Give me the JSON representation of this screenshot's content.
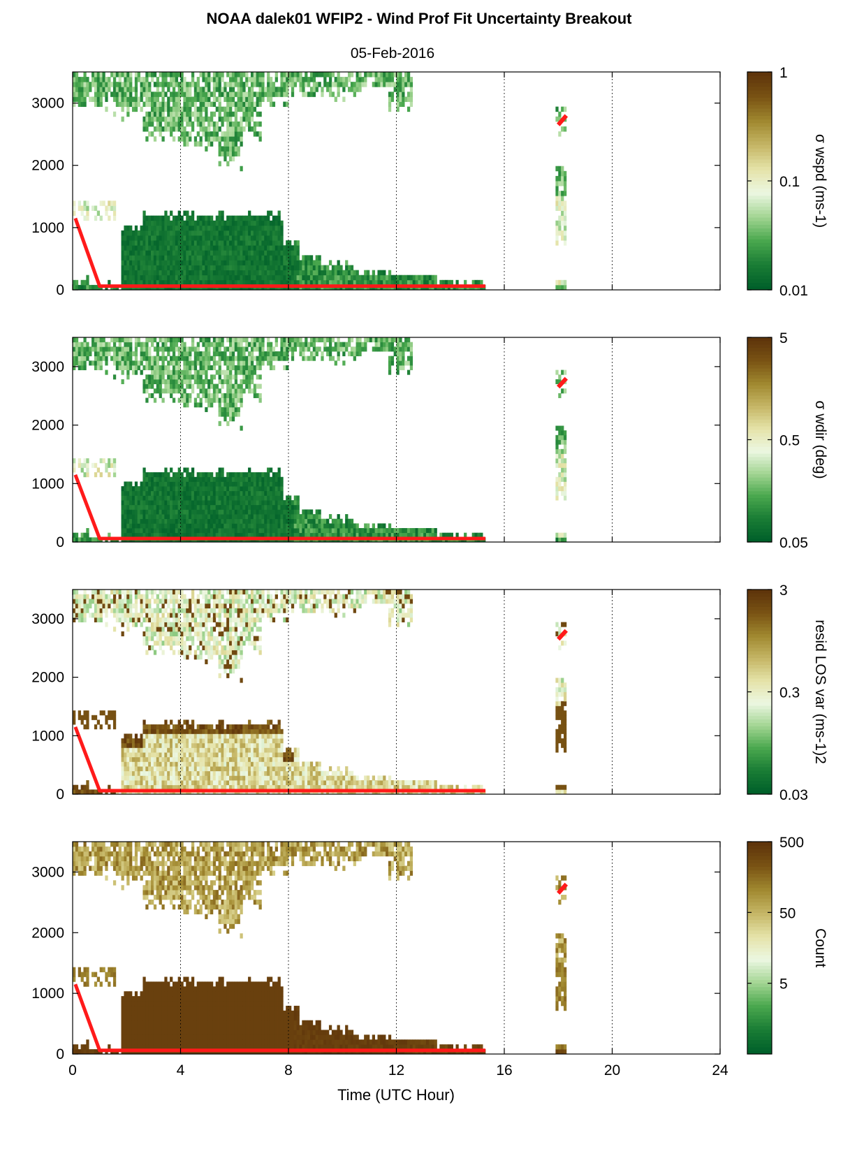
{
  "title": "NOAA dalek01 WFIP2 - Wind Prof Fit Uncertainty Breakout",
  "subtitle": "05-Feb-2016",
  "xlabel": "Time (UTC Hour)",
  "colors": {
    "scale": [
      "#00602a",
      "#1a7d35",
      "#4aa84e",
      "#a3d593",
      "#ecf7e2",
      "#e5e3a8",
      "#c5b666",
      "#a18930",
      "#7a5414",
      "#5f350b"
    ],
    "trace": "#ff1a1a",
    "grid": "#000000"
  },
  "chart_data": [
    {
      "type": "heatmap",
      "name": "wspd",
      "colorbar_label": "σ wspd (ms-1)",
      "colorbar_ticks": [
        "1",
        "0.1",
        "0.01"
      ],
      "clim": [
        0.01,
        1
      ],
      "color_scale": "log",
      "xlim": [
        0,
        24
      ],
      "ylim": [
        0,
        3500
      ],
      "xticks": [
        "0",
        "4",
        "8",
        "12",
        "16",
        "20",
        "24"
      ],
      "yticks": [
        "0",
        "1000",
        "2000",
        "3000"
      ],
      "grid": "vertical dotted at 4-h intervals",
      "red_line": {
        "x": [
          0.1,
          1.0,
          15.3
        ],
        "y": [
          1150,
          60,
          60
        ]
      },
      "red_segment": {
        "x": [
          18.0,
          18.3
        ],
        "y": [
          2650,
          2800
        ]
      }
    },
    {
      "type": "heatmap",
      "name": "wdir",
      "colorbar_label": "σ wdir (deg)",
      "colorbar_ticks": [
        "5",
        "0.5",
        "0.05"
      ],
      "clim": [
        0.05,
        5
      ],
      "color_scale": "log",
      "xlim": [
        0,
        24
      ],
      "ylim": [
        0,
        3500
      ],
      "xticks": [
        "0",
        "4",
        "8",
        "12",
        "16",
        "20",
        "24"
      ],
      "yticks": [
        "0",
        "1000",
        "2000",
        "3000"
      ],
      "grid": "vertical dotted at 4-h intervals",
      "red_line": {
        "x": [
          0.1,
          1.0,
          15.3
        ],
        "y": [
          1150,
          60,
          60
        ]
      },
      "red_segment": {
        "x": [
          18.0,
          18.3
        ],
        "y": [
          2650,
          2800
        ]
      }
    },
    {
      "type": "heatmap",
      "name": "resid",
      "colorbar_label": "resid LOS var (ms-1)2",
      "colorbar_ticks": [
        "3",
        "0.3",
        "0.03"
      ],
      "clim": [
        0.03,
        3
      ],
      "color_scale": "log",
      "xlim": [
        0,
        24
      ],
      "ylim": [
        0,
        3500
      ],
      "xticks": [
        "0",
        "4",
        "8",
        "12",
        "16",
        "20",
        "24"
      ],
      "yticks": [
        "0",
        "1000",
        "2000",
        "3000"
      ],
      "grid": "vertical dotted at 4-h intervals",
      "red_line": {
        "x": [
          0.1,
          1.0,
          15.3
        ],
        "y": [
          1150,
          60,
          60
        ]
      },
      "red_segment": {
        "x": [
          18.0,
          18.3
        ],
        "y": [
          2650,
          2800
        ]
      }
    },
    {
      "type": "heatmap",
      "name": "count",
      "colorbar_label": "Count",
      "colorbar_ticks": [
        "500",
        "50",
        "5"
      ],
      "clim": [
        0.5,
        500
      ],
      "color_scale": "log",
      "xlim": [
        0,
        24
      ],
      "ylim": [
        0,
        3500
      ],
      "xticks": [
        "0",
        "4",
        "8",
        "12",
        "16",
        "20",
        "24"
      ],
      "yticks": [
        "0",
        "1000",
        "2000",
        "3000"
      ],
      "grid": "vertical dotted at 4-h intervals",
      "red_line": {
        "x": [
          0.1,
          1.0,
          15.3
        ],
        "y": [
          1150,
          60,
          60
        ]
      },
      "red_segment": {
        "x": [
          18.0,
          18.3
        ],
        "y": [
          2650,
          2800
        ]
      }
    }
  ]
}
